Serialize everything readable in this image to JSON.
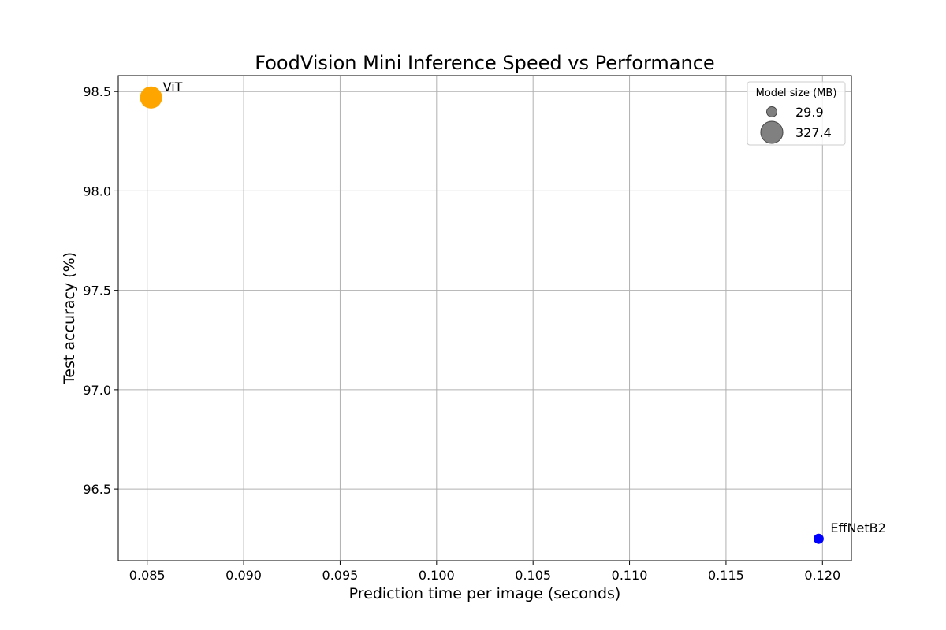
{
  "chart_data": {
    "type": "scatter",
    "title": "FoodVision Mini Inference Speed vs Performance",
    "xlabel": "Prediction time per image (seconds)",
    "ylabel": "Test accuracy (%)",
    "xlim": [
      0.0835,
      0.1215
    ],
    "ylim": [
      96.14,
      98.58
    ],
    "x_ticks": [
      0.085,
      0.09,
      0.095,
      0.1,
      0.105,
      0.11,
      0.115,
      0.12
    ],
    "x_tick_labels": [
      "0.085",
      "0.090",
      "0.095",
      "0.100",
      "0.105",
      "0.110",
      "0.115",
      "0.120"
    ],
    "y_ticks": [
      96.5,
      97.0,
      97.5,
      98.0,
      98.5
    ],
    "y_tick_labels": [
      "96.5",
      "97.0",
      "97.5",
      "98.0",
      "98.5"
    ],
    "grid": true,
    "points": [
      {
        "label": "ViT",
        "x": 0.0852,
        "y": 98.47,
        "size_mb": 327.4,
        "color": "#ffa500"
      },
      {
        "label": "EffNetB2",
        "x": 0.1198,
        "y": 96.25,
        "size_mb": 29.9,
        "color": "#0000ff"
      }
    ],
    "legend": {
      "title": "Model size (MB)",
      "placement": "top-right",
      "entries": [
        {
          "label": "29.9",
          "size_mb": 29.9
        },
        {
          "label": "327.4",
          "size_mb": 327.4
        }
      ],
      "marker_color": "#808080"
    }
  }
}
